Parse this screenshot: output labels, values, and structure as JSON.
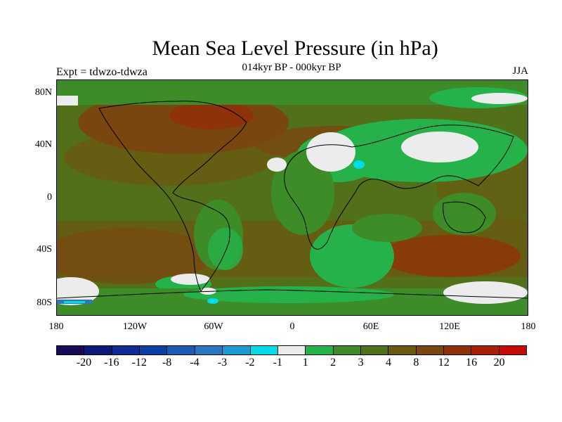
{
  "title": "Mean Sea Level Pressure (in hPa)",
  "subtitle": "014kyr BP - 000kyr BP",
  "left_label": "Expt = tdwzo-tdwza",
  "right_label": "JJA",
  "y_ticks": [
    "80N",
    "40N",
    "0",
    "40S",
    "80S"
  ],
  "x_ticks": [
    "180",
    "120W",
    "60W",
    "0",
    "60E",
    "120E",
    "180"
  ],
  "colorbar": {
    "colors": [
      "#1a0a55",
      "#0e1a78",
      "#102c94",
      "#0c3ea8",
      "#1b5ab5",
      "#2a78c2",
      "#1c9ad4",
      "#00dce8",
      "#ececec",
      "#26b24a",
      "#3e8c28",
      "#52701a",
      "#6a5a10",
      "#7a4610",
      "#8e3208",
      "#a81e08",
      "#c60a08"
    ],
    "labels": [
      "-20",
      "-16",
      "-12",
      "-8",
      "-4",
      "-3",
      "-2",
      "-1",
      "1",
      "2",
      "3",
      "4",
      "8",
      "12",
      "16",
      "20"
    ]
  },
  "map_colors": {
    "ocean_base": "#52701a",
    "darker": "#6a5a10",
    "brown": "#7a4610",
    "red_brown": "#8e3208",
    "green": "#3e8c28",
    "light_green": "#26b24a",
    "grey": "#ececec",
    "cyan": "#00dce8",
    "blue": "#2a78c2"
  }
}
